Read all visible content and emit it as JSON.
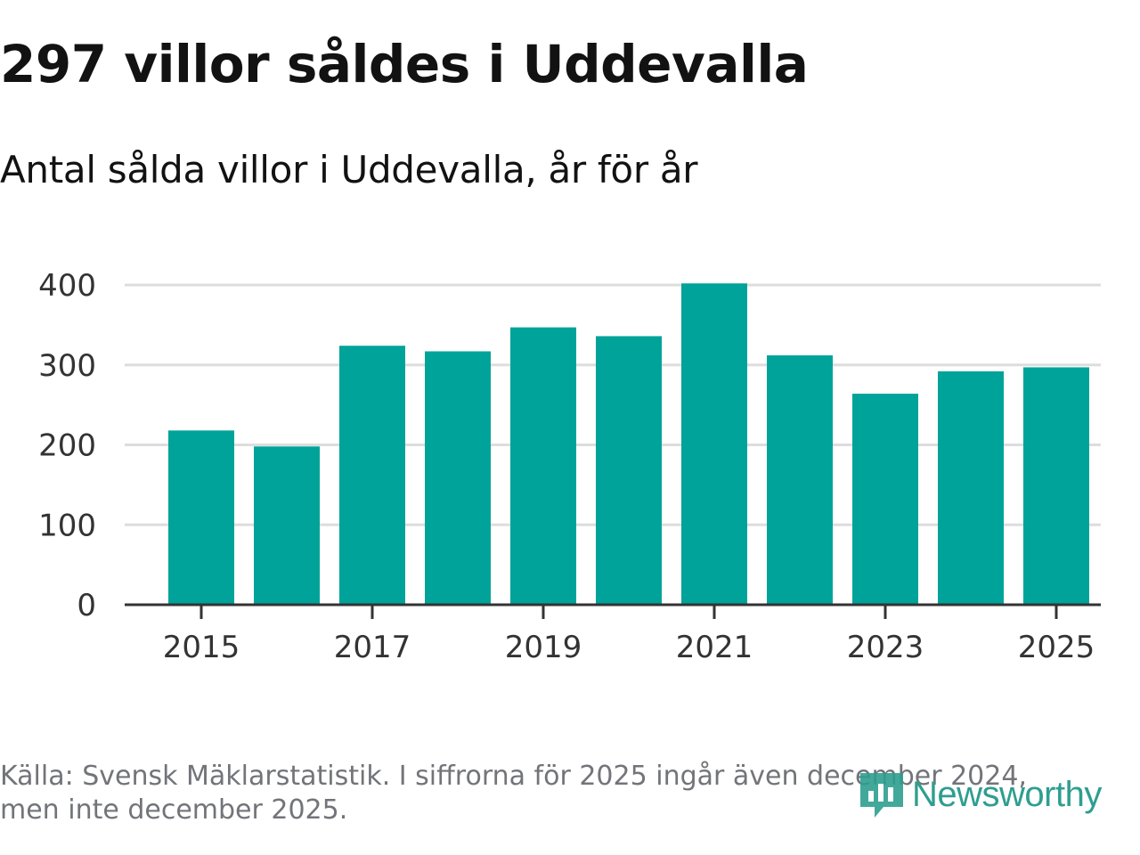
{
  "title": "297 villor såldes i Uddevalla",
  "subtitle": "Antal sålda villor i Uddevalla, år för år",
  "footer": "Källa: Svensk Mäklarstatistik. I siffrorna för 2025 ingår även december 2024, men inte december 2025.",
  "logo": {
    "text": "Newsworthy",
    "color": "#2e9e8f"
  },
  "colors": {
    "bar": "#00a39a",
    "grid": "#dddddd",
    "axis": "#333333"
  },
  "chart_data": {
    "type": "bar",
    "title": "297 villor såldes i Uddevalla",
    "subtitle": "Antal sålda villor i Uddevalla, år för år",
    "xlabel": "",
    "ylabel": "",
    "categories": [
      "2015",
      "2016",
      "2017",
      "2018",
      "2019",
      "2020",
      "2021",
      "2022",
      "2023",
      "2024",
      "2025"
    ],
    "values": [
      218,
      198,
      324,
      317,
      347,
      336,
      402,
      312,
      264,
      292,
      297
    ],
    "ylim": [
      0,
      400
    ],
    "yticks": [
      0,
      100,
      200,
      300,
      400
    ],
    "xtick_labels": [
      "2015",
      "2017",
      "2019",
      "2021",
      "2023",
      "2025"
    ],
    "grid": true,
    "legend": "none"
  }
}
